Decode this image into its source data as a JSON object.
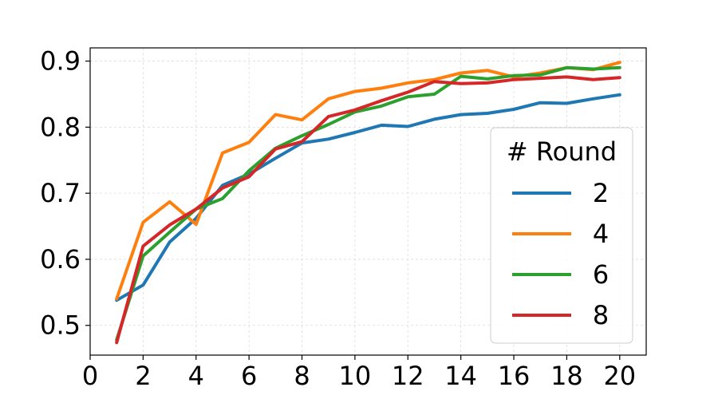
{
  "chart_data": {
    "type": "line",
    "title": "",
    "xlabel": "",
    "ylabel": "",
    "xlim": [
      0,
      21
    ],
    "ylim": [
      0.455,
      0.92
    ],
    "x_ticks": [
      "0",
      "2",
      "4",
      "6",
      "8",
      "10",
      "12",
      "14",
      "16",
      "18",
      "20"
    ],
    "y_ticks": [
      "0.5",
      "0.6",
      "0.7",
      "0.8",
      "0.9"
    ],
    "grid": true,
    "legend": {
      "title": "# Round",
      "position": "center-right"
    },
    "x": [
      1,
      2,
      3,
      4,
      5,
      6,
      7,
      8,
      9,
      10,
      11,
      12,
      13,
      14,
      15,
      16,
      17,
      18,
      19,
      20
    ],
    "series": [
      {
        "name": "2",
        "color": "#1f77b4",
        "values": [
          0.538,
          0.561,
          0.626,
          0.662,
          0.712,
          0.729,
          0.753,
          0.776,
          0.782,
          0.792,
          0.803,
          0.801,
          0.812,
          0.819,
          0.821,
          0.827,
          0.837,
          0.836,
          0.843,
          0.849
        ]
      },
      {
        "name": "4",
        "color": "#ff7f0e",
        "values": [
          0.54,
          0.656,
          0.687,
          0.653,
          0.761,
          0.777,
          0.819,
          0.811,
          0.843,
          0.854,
          0.859,
          0.867,
          0.872,
          0.882,
          0.886,
          0.876,
          0.882,
          0.89,
          0.887,
          0.898
        ]
      },
      {
        "name": "6",
        "color": "#2ca02c",
        "values": [
          0.478,
          0.605,
          0.641,
          0.676,
          0.692,
          0.734,
          0.768,
          0.787,
          0.804,
          0.823,
          0.832,
          0.846,
          0.85,
          0.877,
          0.873,
          0.878,
          0.879,
          0.89,
          0.888,
          0.89
        ]
      },
      {
        "name": "8",
        "color": "#d62728",
        "values": [
          0.474,
          0.62,
          0.652,
          0.676,
          0.708,
          0.725,
          0.767,
          0.778,
          0.816,
          0.826,
          0.84,
          0.853,
          0.869,
          0.866,
          0.867,
          0.872,
          0.874,
          0.876,
          0.872,
          0.875
        ]
      }
    ]
  }
}
